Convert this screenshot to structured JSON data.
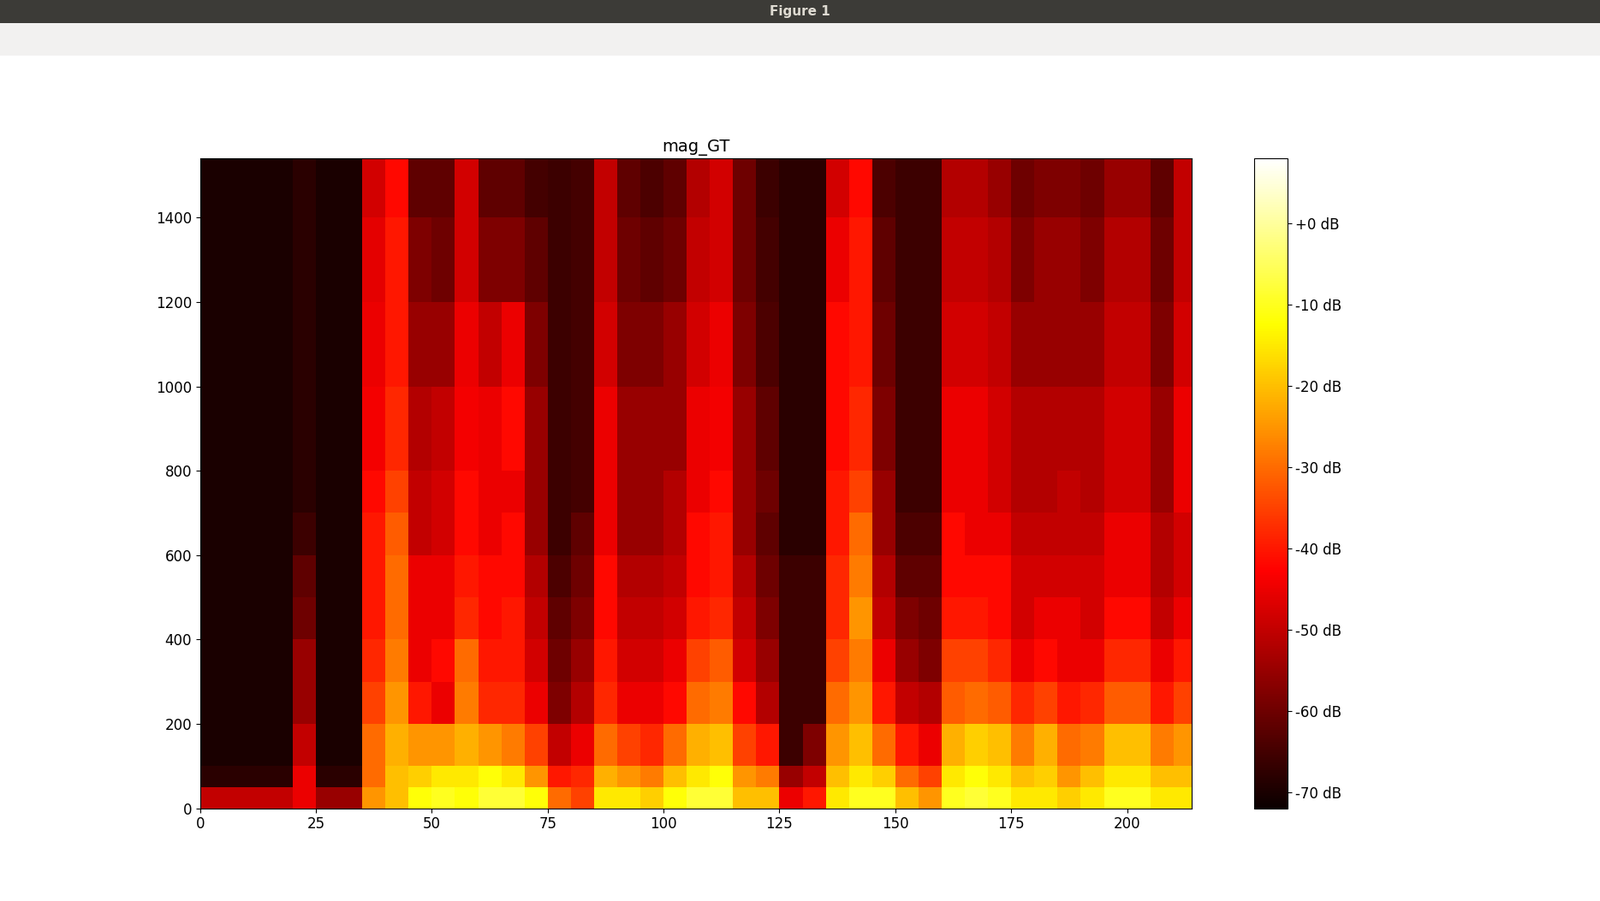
{
  "window_title": "Figure 1",
  "chart_data": {
    "type": "heatmap",
    "title": "mag_GT",
    "color": "hot",
    "xlim": [
      0,
      214
    ],
    "xticks": [
      0,
      25,
      50,
      75,
      100,
      125,
      150,
      175,
      200
    ],
    "ylim": [
      0,
      1540
    ],
    "yticks": [
      0,
      200,
      400,
      600,
      800,
      1000,
      1200,
      1400
    ],
    "x_edges": [
      0,
      5,
      10,
      15,
      20,
      25,
      30,
      35,
      40,
      45,
      50,
      55,
      60,
      65,
      70,
      75,
      80,
      85,
      90,
      95,
      100,
      105,
      110,
      115,
      120,
      125,
      130,
      135,
      140,
      145,
      150,
      155,
      160,
      165,
      170,
      175,
      180,
      185,
      190,
      195,
      200,
      205,
      210,
      215
    ],
    "y_edges": [
      0,
      50,
      100,
      200,
      300,
      400,
      500,
      600,
      700,
      800,
      1000,
      1200,
      1400,
      1540
    ],
    "cells_by_column": [
      [
        -50,
        -68,
        -70,
        -70,
        -70,
        -70,
        -70,
        -70,
        -70,
        -70,
        -70,
        -70,
        -70
      ],
      [
        -50,
        -68,
        -70,
        -70,
        -70,
        -70,
        -70,
        -70,
        -70,
        -70,
        -70,
        -70,
        -70
      ],
      [
        -50,
        -68,
        -70,
        -70,
        -70,
        -70,
        -70,
        -70,
        -70,
        -70,
        -70,
        -70,
        -70
      ],
      [
        -50,
        -68,
        -70,
        -70,
        -70,
        -70,
        -70,
        -70,
        -70,
        -70,
        -70,
        -70,
        -70
      ],
      [
        -45,
        -45,
        -50,
        -55,
        -55,
        -60,
        -62,
        -66,
        -68,
        -68,
        -68,
        -68,
        -68
      ],
      [
        -55,
        -68,
        -70,
        -70,
        -70,
        -70,
        -70,
        -70,
        -70,
        -70,
        -70,
        -70,
        -70
      ],
      [
        -55,
        -68,
        -70,
        -70,
        -70,
        -70,
        -70,
        -70,
        -70,
        -70,
        -70,
        -70,
        -70
      ],
      [
        -25,
        -30,
        -30,
        -35,
        -38,
        -40,
        -40,
        -40,
        -42,
        -44,
        -45,
        -46,
        -48
      ],
      [
        -20,
        -20,
        -22,
        -25,
        -28,
        -30,
        -30,
        -32,
        -35,
        -38,
        -40,
        -40,
        -42
      ],
      [
        -12,
        -18,
        -25,
        -40,
        -45,
        -45,
        -45,
        -50,
        -50,
        -52,
        -55,
        -58,
        -62
      ],
      [
        -10,
        -15,
        -25,
        -45,
        -42,
        -45,
        -45,
        -48,
        -48,
        -50,
        -55,
        -60,
        -62
      ],
      [
        -12,
        -15,
        -22,
        -28,
        -30,
        -38,
        -40,
        -42,
        -42,
        -44,
        -45,
        -48,
        -48
      ],
      [
        -8,
        -12,
        -25,
        -38,
        -40,
        -42,
        -42,
        -45,
        -45,
        -45,
        -50,
        -58,
        -62
      ],
      [
        -8,
        -15,
        -28,
        -38,
        -40,
        -40,
        -42,
        -42,
        -45,
        -42,
        -45,
        -58,
        -62
      ],
      [
        -12,
        -25,
        -35,
        -45,
        -48,
        -50,
        -52,
        -55,
        -55,
        -55,
        -58,
        -62,
        -65
      ],
      [
        -30,
        -40,
        -50,
        -58,
        -60,
        -62,
        -64,
        -66,
        -66,
        -66,
        -66,
        -66,
        -66
      ],
      [
        -35,
        -38,
        -45,
        -52,
        -55,
        -58,
        -60,
        -62,
        -65,
        -65,
        -65,
        -65,
        -65
      ],
      [
        -15,
        -22,
        -30,
        -38,
        -40,
        -42,
        -42,
        -45,
        -45,
        -45,
        -48,
        -50,
        -50
      ],
      [
        -15,
        -25,
        -35,
        -45,
        -48,
        -50,
        -52,
        -55,
        -55,
        -55,
        -58,
        -60,
        -62
      ],
      [
        -18,
        -28,
        -38,
        -45,
        -48,
        -50,
        -52,
        -55,
        -55,
        -55,
        -58,
        -62,
        -64
      ],
      [
        -12,
        -20,
        -30,
        -42,
        -45,
        -48,
        -50,
        -52,
        -52,
        -55,
        -55,
        -60,
        -62
      ],
      [
        -8,
        -15,
        -22,
        -30,
        -35,
        -40,
        -42,
        -42,
        -45,
        -45,
        -48,
        -50,
        -52
      ],
      [
        -8,
        -12,
        -20,
        -28,
        -32,
        -38,
        -40,
        -40,
        -42,
        -44,
        -45,
        -48,
        -48
      ],
      [
        -20,
        -25,
        -35,
        -42,
        -48,
        -50,
        -52,
        -55,
        -55,
        -55,
        -58,
        -60,
        -60
      ],
      [
        -20,
        -28,
        -40,
        -52,
        -55,
        -58,
        -60,
        -62,
        -60,
        -62,
        -64,
        -65,
        -66
      ],
      [
        -45,
        -55,
        -66,
        -66,
        -66,
        -66,
        -66,
        -68,
        -68,
        -68,
        -68,
        -68,
        -68
      ],
      [
        -40,
        -50,
        -58,
        -66,
        -66,
        -66,
        -66,
        -68,
        -68,
        -68,
        -68,
        -68,
        -68
      ],
      [
        -15,
        -20,
        -25,
        -30,
        -35,
        -38,
        -38,
        -40,
        -40,
        -42,
        -42,
        -45,
        -48
      ],
      [
        -10,
        -15,
        -20,
        -25,
        -28,
        -25,
        -28,
        -30,
        -35,
        -38,
        -40,
        -40,
        -42
      ],
      [
        -10,
        -18,
        -30,
        -40,
        -45,
        -50,
        -52,
        -55,
        -55,
        -58,
        -60,
        -62,
        -64
      ],
      [
        -20,
        -30,
        -40,
        -50,
        -55,
        -58,
        -62,
        -64,
        -66,
        -66,
        -66,
        -66,
        -66
      ],
      [
        -25,
        -35,
        -45,
        -52,
        -58,
        -60,
        -62,
        -64,
        -66,
        -66,
        -66,
        -66,
        -66
      ],
      [
        -10,
        -15,
        -22,
        -32,
        -35,
        -40,
        -42,
        -42,
        -45,
        -45,
        -48,
        -50,
        -52
      ],
      [
        -8,
        -12,
        -18,
        -30,
        -35,
        -40,
        -42,
        -45,
        -45,
        -45,
        -48,
        -50,
        -52
      ],
      [
        -10,
        -15,
        -20,
        -32,
        -38,
        -42,
        -42,
        -45,
        -48,
        -48,
        -50,
        -52,
        -55
      ],
      [
        -15,
        -20,
        -28,
        -38,
        -45,
        -48,
        -48,
        -50,
        -52,
        -52,
        -55,
        -58,
        -60
      ],
      [
        -15,
        -18,
        -22,
        -35,
        -42,
        -45,
        -48,
        -50,
        -52,
        -52,
        -55,
        -55,
        -58
      ],
      [
        -18,
        -25,
        -30,
        -40,
        -45,
        -45,
        -48,
        -50,
        -50,
        -52,
        -55,
        -55,
        -58
      ],
      [
        -15,
        -20,
        -28,
        -38,
        -45,
        -48,
        -48,
        -50,
        -52,
        -52,
        -55,
        -58,
        -60
      ],
      [
        -10,
        -15,
        -20,
        -32,
        -38,
        -42,
        -45,
        -45,
        -48,
        -48,
        -50,
        -52,
        -55
      ],
      [
        -10,
        -15,
        -20,
        -32,
        -38,
        -42,
        -45,
        -45,
        -48,
        -48,
        -50,
        -52,
        -55
      ],
      [
        -15,
        -20,
        -28,
        -40,
        -45,
        -50,
        -52,
        -52,
        -55,
        -55,
        -58,
        -60,
        -62
      ],
      [
        -15,
        -20,
        -25,
        -35,
        -40,
        -45,
        -48,
        -48,
        -45,
        -45,
        -48,
        -50,
        -50
      ]
    ],
    "colorbar_range": [
      -72,
      8
    ],
    "colorbar_ticks": [
      {
        "value": -70,
        "label": "-70 dB"
      },
      {
        "value": -60,
        "label": "-60 dB"
      },
      {
        "value": -50,
        "label": "-50 dB"
      },
      {
        "value": -40,
        "label": "-40 dB"
      },
      {
        "value": -30,
        "label": "-30 dB"
      },
      {
        "value": -20,
        "label": "-20 dB"
      },
      {
        "value": -10,
        "label": "-10 dB"
      },
      {
        "value": 0,
        "label": "+0 dB"
      }
    ]
  }
}
